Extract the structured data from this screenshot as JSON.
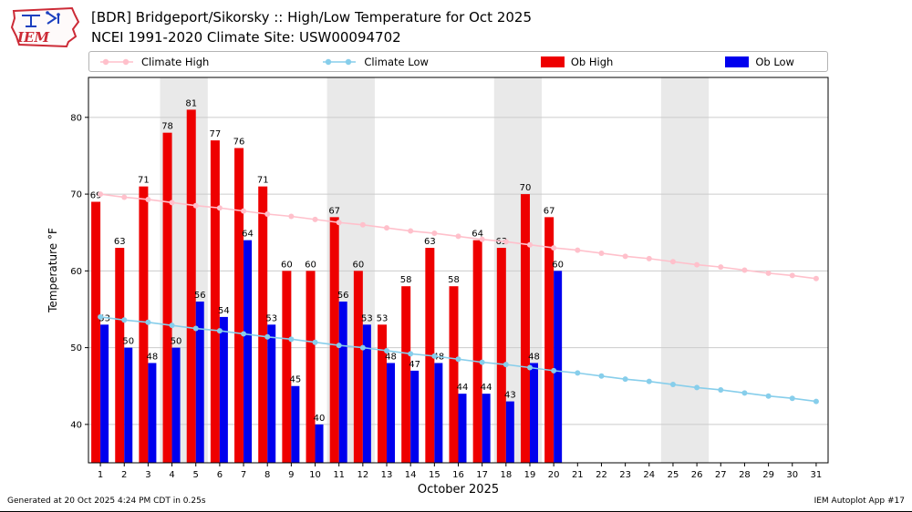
{
  "header": {
    "logo_text": "IEM",
    "title_line1": "[BDR] Bridgeport/Sikorsky :: High/Low Temperature for Oct 2025",
    "title_line2": "NCEI 1991-2020 Climate Site: USW00094702"
  },
  "legend": {
    "items": [
      {
        "label": "Climate High",
        "type": "line",
        "color": "#ffc0cb"
      },
      {
        "label": "Climate Low",
        "type": "line",
        "color": "#87ceeb"
      },
      {
        "label": "Ob High",
        "type": "patch",
        "color": "#ee0000"
      },
      {
        "label": "Ob Low",
        "type": "patch",
        "color": "#0000ee"
      }
    ]
  },
  "chart_data": {
    "type": "bar",
    "title": "[BDR] Bridgeport/Sikorsky :: High/Low Temperature for Oct 2025",
    "subtitle": "NCEI 1991-2020 Climate Site: USW00094702",
    "xlabel": "October 2025",
    "ylabel": "Temperature °F",
    "ylim": [
      35,
      85.2
    ],
    "yticks": [
      40,
      50,
      60,
      70,
      80
    ],
    "x_tick_labels": [
      "1",
      "2",
      "3",
      "4",
      "5",
      "6",
      "7",
      "8",
      "9",
      "10",
      "11",
      "12",
      "13",
      "14",
      "15",
      "16",
      "17",
      "18",
      "19",
      "20",
      "21",
      "22",
      "23",
      "24",
      "25",
      "26",
      "27",
      "28",
      "29",
      "30",
      "31"
    ],
    "weekend_bands": [
      [
        4,
        5
      ],
      [
        11,
        12
      ],
      [
        18,
        19
      ],
      [
        25,
        26
      ]
    ],
    "style": {
      "band": "#e9e9e9",
      "grid": "#cccccc",
      "label": "#000000"
    },
    "series": [
      {
        "name": "Ob High",
        "type": "bar",
        "color": "#ee0000",
        "values": [
          69,
          63,
          71,
          78,
          81,
          77,
          76,
          71,
          60,
          60,
          67,
          60,
          53,
          58,
          63,
          58,
          64,
          63,
          70,
          67
        ]
      },
      {
        "name": "Ob Low",
        "type": "bar",
        "color": "#0000ee",
        "values": [
          53,
          50,
          48,
          50,
          56,
          54,
          64,
          53,
          45,
          40,
          56,
          53,
          48,
          47,
          48,
          44,
          44,
          43,
          48,
          60
        ]
      },
      {
        "name": "Climate High",
        "type": "line",
        "color": "#ffc0cb",
        "values": [
          70.0,
          69.6,
          69.3,
          68.9,
          68.5,
          68.2,
          67.8,
          67.4,
          67.1,
          66.7,
          66.3,
          66.0,
          65.6,
          65.2,
          64.9,
          64.5,
          64.1,
          63.8,
          63.4,
          63.0,
          62.7,
          62.3,
          61.9,
          61.6,
          61.2,
          60.8,
          60.5,
          60.1,
          59.7,
          59.4,
          59.0
        ]
      },
      {
        "name": "Climate Low",
        "type": "line",
        "color": "#87ceeb",
        "values": [
          54.0,
          53.6,
          53.3,
          52.9,
          52.5,
          52.2,
          51.8,
          51.4,
          51.1,
          50.7,
          50.3,
          50.0,
          49.6,
          49.2,
          48.9,
          48.5,
          48.1,
          47.8,
          47.4,
          47.0,
          46.7,
          46.3,
          45.9,
          45.6,
          45.2,
          44.8,
          44.5,
          44.1,
          43.7,
          43.4,
          43.0
        ]
      }
    ],
    "legend_position": "top",
    "grid": true
  },
  "footer": {
    "left": "Generated at 20 Oct 2025 4:24 PM CDT in 0.25s",
    "right": "IEM Autoplot App #17"
  }
}
